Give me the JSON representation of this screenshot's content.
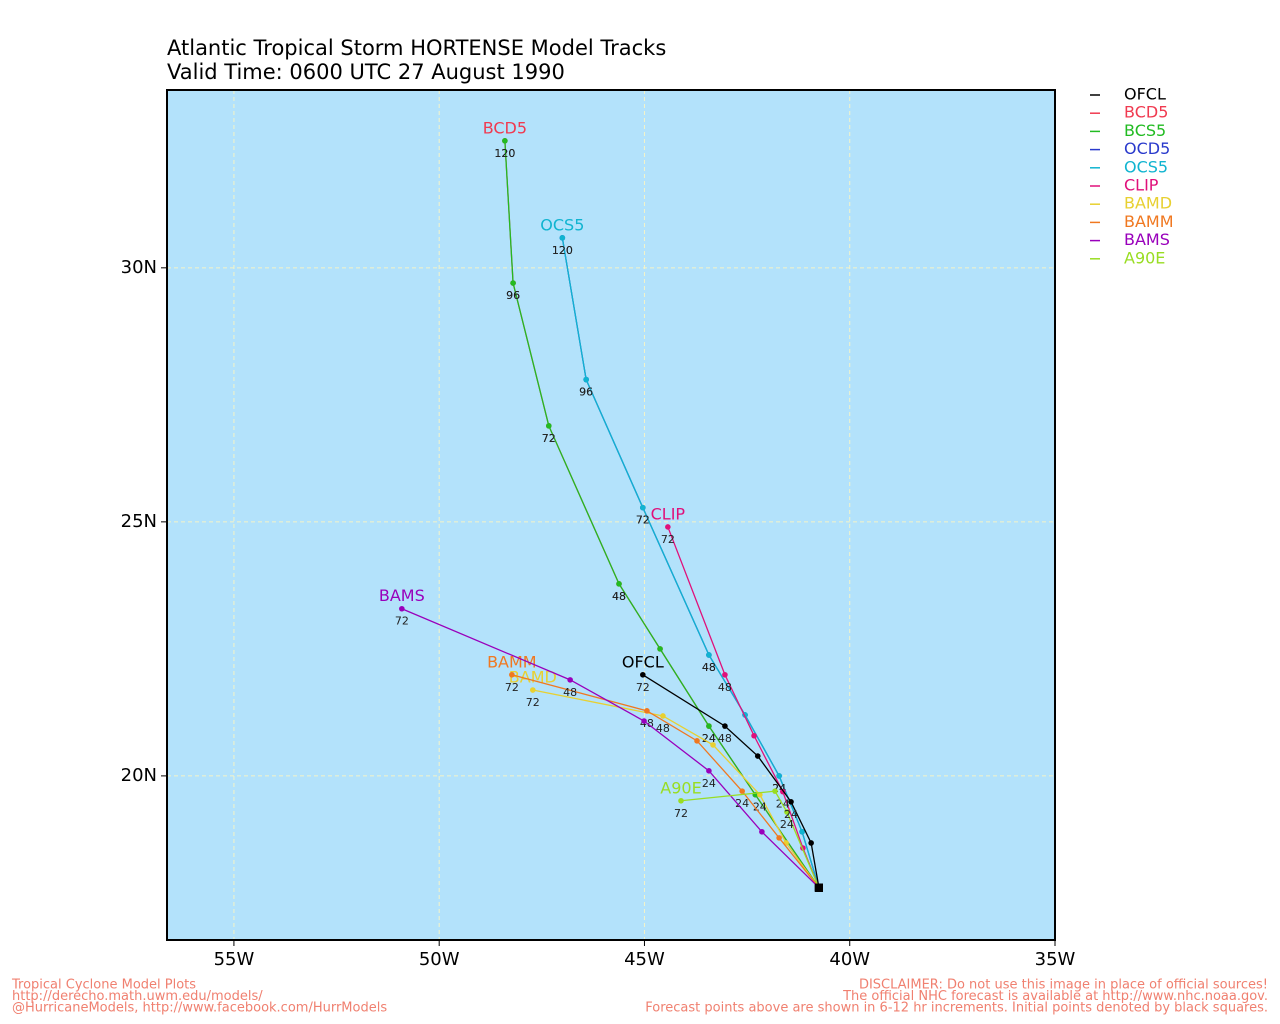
{
  "chart_data": {
    "type": "line",
    "title": "Atlantic Tropical Storm HORTENSE Model Tracks",
    "subtitle": "Valid Time: 0600 UTC 27 August 1990",
    "xlim": [
      -56.63,
      -35
    ],
    "ylim": [
      16.77,
      33.5
    ],
    "xticks": [
      {
        "value": -55,
        "label": "55W"
      },
      {
        "value": -50,
        "label": "50W"
      },
      {
        "value": -45,
        "label": "45W"
      },
      {
        "value": -40,
        "label": "40W"
      },
      {
        "value": -35,
        "label": "35W"
      }
    ],
    "yticks": [
      {
        "value": 20,
        "label": "20N"
      },
      {
        "value": 25,
        "label": "25N"
      },
      {
        "value": 30,
        "label": "30N"
      }
    ],
    "grid": true,
    "legend": "right",
    "background": "#b3e2fb",
    "series": [
      {
        "name": "BCD5",
        "color": "#f03a50",
        "label_shown": true,
        "x": [
          -40.75,
          -42.3,
          -43.43,
          -44.62,
          -45.62,
          -47.33,
          -48.2,
          -48.4
        ],
        "values": [
          17.8,
          19.63,
          20.98,
          22.5,
          23.78,
          26.89,
          29.7,
          32.5
        ],
        "point_labels": [
          null,
          null,
          24,
          null,
          48,
          72,
          96,
          120
        ]
      },
      {
        "name": "BCS5",
        "color": "#22bb22",
        "label_shown": false,
        "x": [
          -40.75,
          -42.3,
          -43.43,
          -44.62,
          -45.62,
          -47.33,
          -48.2,
          -48.4
        ],
        "values": [
          17.8,
          19.63,
          20.98,
          22.5,
          23.78,
          26.89,
          29.7,
          32.5
        ],
        "point_labels": [
          null,
          null,
          24,
          null,
          48,
          72,
          96,
          120
        ]
      },
      {
        "name": "OCD5",
        "color": "#2a3acc",
        "label_shown": false,
        "x": [
          -40.75,
          -41.16,
          -41.72,
          -42.55,
          -43.43,
          -45.04,
          -46.42,
          -47.0
        ],
        "values": [
          17.8,
          18.9,
          20.0,
          21.2,
          22.38,
          25.28,
          27.8,
          30.59
        ],
        "point_labels": [
          null,
          null,
          24,
          null,
          48,
          72,
          96,
          120
        ]
      },
      {
        "name": "OCS5",
        "color": "#10b4d0",
        "label_shown": true,
        "x": [
          -40.75,
          -41.16,
          -41.72,
          -42.55,
          -43.43,
          -45.04,
          -46.42,
          -47.0
        ],
        "values": [
          17.8,
          18.9,
          20.0,
          21.2,
          22.38,
          25.28,
          27.8,
          30.59
        ],
        "point_labels": [
          null,
          null,
          24,
          null,
          48,
          72,
          96,
          120
        ]
      },
      {
        "name": "CLIP",
        "color": "#e0107a",
        "label_shown": true,
        "x": [
          -40.75,
          -41.14,
          -41.63,
          -42.33,
          -43.04,
          -44.43
        ],
        "values": [
          17.8,
          18.58,
          19.69,
          20.79,
          21.99,
          24.9
        ],
        "point_labels": [
          null,
          null,
          24,
          null,
          48,
          72
        ]
      },
      {
        "name": "BAMD",
        "color": "#e8d030",
        "label_shown": true,
        "x": [
          -40.75,
          -41.55,
          -42.19,
          -43.33,
          -44.55,
          -47.72
        ],
        "values": [
          17.8,
          18.68,
          19.63,
          20.61,
          21.18,
          21.69
        ],
        "point_labels": [
          null,
          null,
          24,
          null,
          48,
          72
        ]
      },
      {
        "name": "BAMM",
        "color": "#f07820",
        "label_shown": true,
        "x": [
          -40.75,
          -41.72,
          -42.62,
          -43.72,
          -44.94,
          -48.23
        ],
        "values": [
          17.8,
          18.78,
          19.7,
          20.69,
          21.28,
          21.99
        ],
        "point_labels": [
          null,
          null,
          24,
          null,
          48,
          72
        ]
      },
      {
        "name": "BAMS",
        "color": "#9900bb",
        "label_shown": true,
        "x": [
          -40.75,
          -42.14,
          -43.43,
          -45.01,
          -46.81,
          -50.91
        ],
        "values": [
          17.8,
          18.9,
          20.1,
          21.08,
          21.89,
          23.29
        ],
        "point_labels": [
          null,
          null,
          24,
          null,
          48,
          72
        ]
      },
      {
        "name": "A90E",
        "color": "#99dd22",
        "label_shown": true,
        "x": [
          -40.75,
          -41.53,
          -41.82,
          -44.11
        ],
        "values": [
          17.8,
          19.29,
          19.7,
          19.51
        ],
        "point_labels": [
          null,
          24,
          null,
          72
        ]
      },
      {
        "name": "OFCL",
        "color": "#000000",
        "label_shown": true,
        "x": [
          -40.75,
          -40.94,
          -41.43,
          -42.24,
          -43.04,
          -45.04
        ],
        "values": [
          17.8,
          18.68,
          19.49,
          20.39,
          20.98,
          21.99
        ],
        "point_labels": [
          null,
          null,
          24,
          null,
          48,
          72
        ]
      }
    ],
    "legend_order": [
      9,
      0,
      1,
      2,
      3,
      4,
      5,
      6,
      7,
      8
    ],
    "footer_left": [
      "Tropical Cyclone Model Plots",
      "http://derecho.math.uwm.edu/models/",
      "@HurricaneModels, http://www.facebook.com/HurrModels"
    ],
    "footer_right": [
      "DISCLAIMER: Do not use this image in place of official sources!",
      "The official NHC forecast is available at http://www.nhc.noaa.gov.",
      "Forecast points above are shown in 6-12 hr increments. Initial points denoted by black squares."
    ]
  }
}
